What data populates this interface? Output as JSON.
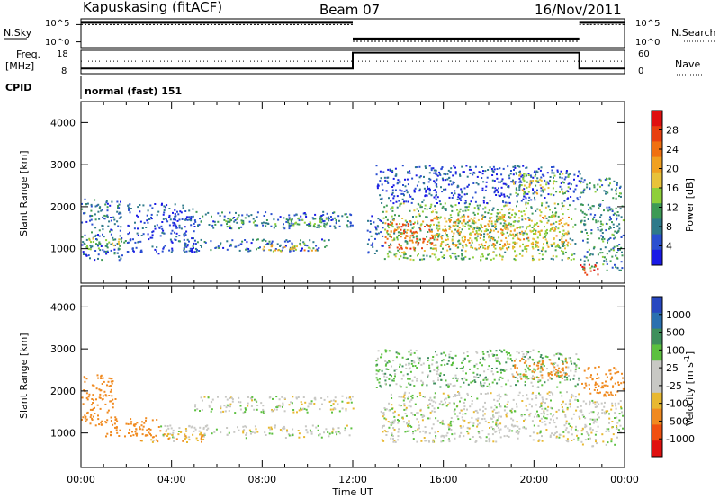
{
  "header": {
    "station": "Kapuskasing (fitACF)",
    "beam": "Beam 07",
    "date": "16/Nov/2011"
  },
  "chart_data": [
    {
      "type": "line",
      "panel": "noise",
      "ylabel_left": "N.Sky",
      "ylabel_right": "N.Search",
      "yticks": [
        "10^5",
        "10^0"
      ],
      "series": [
        {
          "name": "N.Sky",
          "segments": [
            {
              "x": [
                0,
                12
              ],
              "y": 0.88
            },
            {
              "x": [
                12,
                22
              ],
              "y": 0.3
            },
            {
              "x": [
                22,
                24
              ],
              "y": 0.88
            }
          ]
        },
        {
          "name": "N.Search",
          "segments": [
            {
              "x": [
                0,
                12
              ],
              "y": 0.8
            },
            {
              "x": [
                12,
                22
              ],
              "y": 0.22
            },
            {
              "x": [
                22,
                24
              ],
              "y": 0.8
            }
          ]
        }
      ]
    },
    {
      "type": "line",
      "panel": "frequency",
      "ylabel_left_1": "Freq.",
      "ylabel_left_2": "[MHz]",
      "ylabel_right": "Nave",
      "yticks_left": [
        "18",
        "8"
      ],
      "yticks_right": [
        "60",
        "0"
      ],
      "series": [
        {
          "name": "Freq.",
          "x": [
            0,
            12,
            12,
            22,
            22,
            24
          ],
          "y": [
            10.2,
            10.2,
            17.0,
            17.0,
            10.2,
            10.2
          ]
        },
        {
          "name": "Nave",
          "x": [
            0,
            24
          ],
          "y": [
            32,
            32
          ]
        }
      ]
    },
    {
      "type": "text",
      "panel": "cpid",
      "label": "CPID",
      "value": "normal (fast) 151"
    },
    {
      "type": "heatmap",
      "panel": "power",
      "ylabel": "Slant Range [km]",
      "yticks": [
        "1000",
        "2000",
        "3000",
        "4000"
      ],
      "ylim": [
        180,
        4500
      ],
      "xlim": [
        0,
        24
      ],
      "colorbar": {
        "label": "Power [dB]",
        "ticks": [
          "4",
          "8",
          "12",
          "16",
          "20",
          "24",
          "28"
        ],
        "colors": [
          "#1a1ae6",
          "#2a4fd0",
          "#2e7a8a",
          "#3d9a55",
          "#8ecf3a",
          "#e8c23a",
          "#f0a020",
          "#f07010",
          "#e84010",
          "#e01010"
        ]
      },
      "regions": [
        {
          "t": [
            0.0,
            1.8
          ],
          "r": [
            750,
            2200
          ],
          "v": 8
        },
        {
          "t": [
            0.0,
            2.0
          ],
          "r": [
            1000,
            1300
          ],
          "v": 14
        },
        {
          "t": [
            2.0,
            5.0
          ],
          "r": [
            900,
            2100
          ],
          "v": 6
        },
        {
          "t": [
            5.0,
            12.0
          ],
          "r": [
            1500,
            1900
          ],
          "v": 8
        },
        {
          "t": [
            6.0,
            11.0
          ],
          "r": [
            1550,
            1750
          ],
          "v": 12
        },
        {
          "t": [
            4.0,
            11.0
          ],
          "r": [
            950,
            1250
          ],
          "v": 8
        },
        {
          "t": [
            8.0,
            10.5
          ],
          "r": [
            950,
            1150
          ],
          "v": 18
        },
        {
          "t": [
            12.6,
            13.3
          ],
          "r": [
            900,
            1800
          ],
          "v": 7
        },
        {
          "t": [
            13.3,
            21.8
          ],
          "r": [
            750,
            2100
          ],
          "v": 13
        },
        {
          "t": [
            13.3,
            15.5
          ],
          "r": [
            1000,
            1700
          ],
          "v": 24
        },
        {
          "t": [
            15.5,
            21.5
          ],
          "r": [
            1000,
            1800
          ],
          "v": 19
        },
        {
          "t": [
            13.0,
            22.0
          ],
          "r": [
            2100,
            3000
          ],
          "v": 6
        },
        {
          "t": [
            19.0,
            21.5
          ],
          "r": [
            2300,
            2800
          ],
          "v": 16
        },
        {
          "t": [
            22.0,
            24.0
          ],
          "r": [
            500,
            2700
          ],
          "v": 10
        },
        {
          "t": [
            22.0,
            22.8
          ],
          "r": [
            400,
            700
          ],
          "v": 26
        }
      ]
    },
    {
      "type": "heatmap",
      "panel": "velocity",
      "ylabel": "Slant Range [km]",
      "yticks": [
        "1000",
        "2000",
        "3000",
        "4000"
      ],
      "ylim": [
        180,
        4500
      ],
      "xlim": [
        0,
        24
      ],
      "xticks": [
        "00:00",
        "04:00",
        "08:00",
        "12:00",
        "16:00",
        "20:00",
        "00:00"
      ],
      "xlabel": "Time UT",
      "colorbar": {
        "label": "Velocity [m s^-1]",
        "ticks": [
          "1000",
          "500",
          "100",
          "25",
          "-25",
          "-100",
          "-500",
          "-1000"
        ],
        "colors": [
          "#2848c0",
          "#2a70b0",
          "#3e8f5c",
          "#5cc040",
          "#c8c8c4",
          "#c8c8c4",
          "#e8b830",
          "#f08a20",
          "#f05010",
          "#e01010"
        ]
      },
      "regions": [
        {
          "t": [
            0.0,
            1.5
          ],
          "r": [
            1200,
            2400
          ],
          "v": -150
        },
        {
          "t": [
            1.0,
            3.5
          ],
          "r": [
            900,
            1400
          ],
          "v": -200
        },
        {
          "t": [
            3.5,
            12.0
          ],
          "r": [
            900,
            1200
          ],
          "v": 0
        },
        {
          "t": [
            5.0,
            12.0
          ],
          "r": [
            1500,
            1900
          ],
          "v": 0
        },
        {
          "t": [
            2.5,
            5.5
          ],
          "r": [
            800,
            1000
          ],
          "v": -60
        },
        {
          "t": [
            13.2,
            22.0
          ],
          "r": [
            800,
            2000
          ],
          "v": 0
        },
        {
          "t": [
            13.0,
            22.0
          ],
          "r": [
            2100,
            3000
          ],
          "v": 40
        },
        {
          "t": [
            19.0,
            21.5
          ],
          "r": [
            2300,
            2800
          ],
          "v": -120
        },
        {
          "t": [
            22.0,
            24.0
          ],
          "r": [
            1900,
            2600
          ],
          "v": -200
        },
        {
          "t": [
            22.0,
            24.0
          ],
          "r": [
            700,
            1800
          ],
          "v": 0
        }
      ]
    }
  ]
}
